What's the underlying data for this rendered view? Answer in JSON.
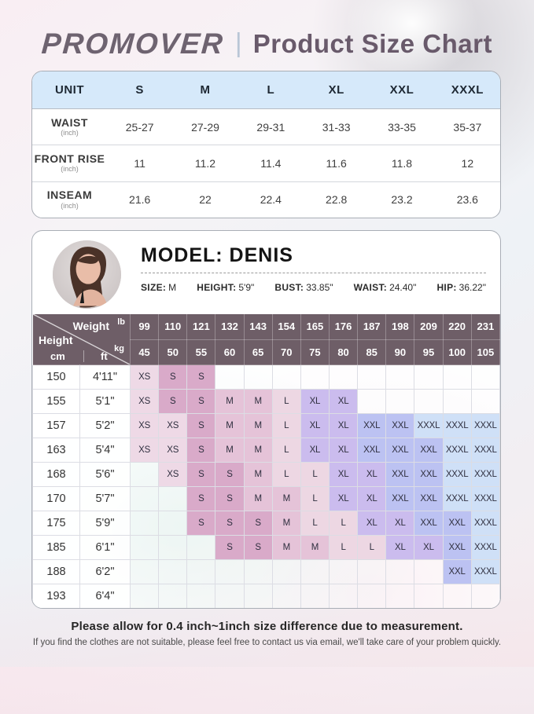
{
  "header": {
    "brand": "PROMOVER",
    "separator": "|",
    "title": "Product Size Chart"
  },
  "unit_table": {
    "columns": [
      "UNIT",
      "S",
      "M",
      "L",
      "XL",
      "XXL",
      "XXXL"
    ],
    "rows": [
      {
        "label": "WAIST",
        "unit": "(inch)",
        "values": [
          "25-27",
          "27-29",
          "29-31",
          "31-33",
          "33-35",
          "35-37"
        ]
      },
      {
        "label": "FRONT RISE",
        "unit": "(inch)",
        "values": [
          "11",
          "11.2",
          "11.4",
          "11.6",
          "11.8",
          "12"
        ]
      },
      {
        "label": "INSEAM",
        "unit": "(inch)",
        "values": [
          "21.6",
          "22",
          "22.4",
          "22.8",
          "23.2",
          "23.6"
        ]
      }
    ]
  },
  "model": {
    "title": "MODEL: DENIS",
    "stats": [
      {
        "label": "SIZE",
        "value": "M"
      },
      {
        "label": "HEIGHT",
        "value": "5'9\""
      },
      {
        "label": "BUST",
        "value": "33.85\""
      },
      {
        "label": "WAIST",
        "value": "24.40\""
      },
      {
        "label": "HIP",
        "value": "36.22\""
      }
    ]
  },
  "size_matrix": {
    "corner": {
      "weight_label": "Weight",
      "height_label": "Height",
      "lb": "lb",
      "kg": "kg",
      "cm": "cm",
      "ft": "ft"
    },
    "weights_lb": [
      "99",
      "110",
      "121",
      "132",
      "143",
      "154",
      "165",
      "176",
      "187",
      "198",
      "209",
      "220",
      "231"
    ],
    "weights_kg": [
      "45",
      "50",
      "55",
      "60",
      "65",
      "70",
      "75",
      "80",
      "85",
      "90",
      "95",
      "100",
      "105"
    ],
    "rows": [
      {
        "cm": "150",
        "ft": "4'11\"",
        "sizes": [
          "XS",
          "S",
          "S",
          "",
          "",
          "",
          "",
          "",
          "",
          "",
          "",
          "",
          ""
        ]
      },
      {
        "cm": "155",
        "ft": "5'1\"",
        "sizes": [
          "XS",
          "S",
          "S",
          "M",
          "M",
          "L",
          "XL",
          "XL",
          "",
          "",
          "",
          "",
          ""
        ]
      },
      {
        "cm": "157",
        "ft": "5'2\"",
        "sizes": [
          "XS",
          "XS",
          "S",
          "M",
          "M",
          "L",
          "XL",
          "XL",
          "XXL",
          "XXL",
          "XXXL",
          "XXXL",
          "XXXL"
        ]
      },
      {
        "cm": "163",
        "ft": "5'4\"",
        "sizes": [
          "XS",
          "XS",
          "S",
          "M",
          "M",
          "L",
          "XL",
          "XL",
          "XXL",
          "XXL",
          "XXL",
          "XXXL",
          "XXXL"
        ]
      },
      {
        "cm": "168",
        "ft": "5'6\"",
        "sizes": [
          "",
          "XS",
          "S",
          "S",
          "M",
          "L",
          "L",
          "XL",
          "XL",
          "XXL",
          "XXL",
          "XXXL",
          "XXXL"
        ]
      },
      {
        "cm": "170",
        "ft": "5'7\"",
        "sizes": [
          "",
          "",
          "S",
          "S",
          "M",
          "M",
          "L",
          "XL",
          "XL",
          "XXL",
          "XXL",
          "XXXL",
          "XXXL"
        ]
      },
      {
        "cm": "175",
        "ft": "5'9\"",
        "sizes": [
          "",
          "",
          "S",
          "S",
          "S",
          "M",
          "L",
          "L",
          "XL",
          "XL",
          "XXL",
          "XXL",
          "XXXL"
        ]
      },
      {
        "cm": "185",
        "ft": "6'1\"",
        "sizes": [
          "",
          "",
          "",
          "S",
          "S",
          "M",
          "M",
          "L",
          "L",
          "XL",
          "XL",
          "XXL",
          "XXXL"
        ]
      },
      {
        "cm": "188",
        "ft": "6'2\"",
        "sizes": [
          "",
          "",
          "",
          "",
          "",
          "",
          "",
          "",
          "",
          "",
          "",
          "XXL",
          "XXXL"
        ]
      },
      {
        "cm": "193",
        "ft": "6'4\"",
        "sizes": [
          "",
          "",
          "",
          "",
          "",
          "",
          "",
          "",
          "",
          "",
          "",
          "",
          ""
        ]
      }
    ],
    "size_colors": {
      "XS": "#eed9e6",
      "S": "#d9aac9",
      "M": "#e5c3d8",
      "L": "#edd7e3",
      "XL": "#cbbcee",
      "XXL": "#bcc2f2",
      "XXXL": "#cfe0f7"
    },
    "header_bg": "#6e5e67"
  },
  "footer": {
    "line1": "Please allow for 0.4 inch~1inch size difference due to measurement.",
    "line2": "If you find the clothes are not suitable, please feel free to contact us via email, we'll take care of your problem quickly."
  }
}
